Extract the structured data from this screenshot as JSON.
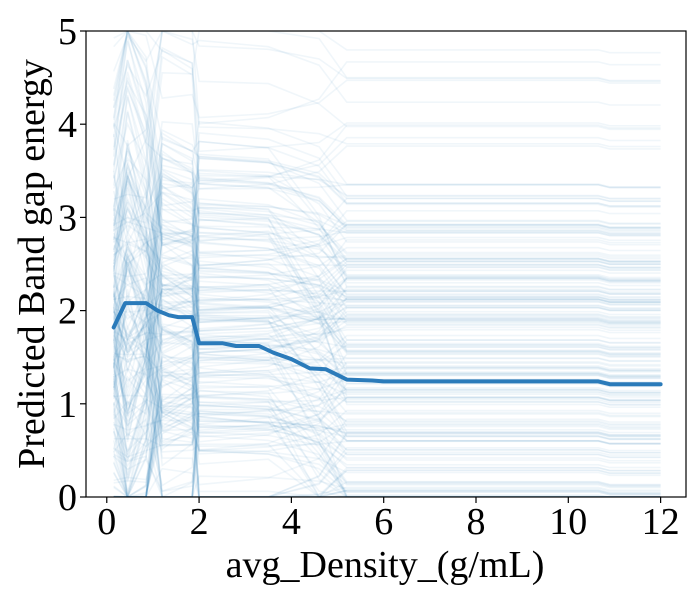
{
  "chart_data": {
    "type": "line",
    "title": "",
    "xlabel": "avg_Density_(g/mL)",
    "ylabel": "Predicted Band gap energy",
    "xlim": [
      -0.45,
      12.55
    ],
    "ylim": [
      0,
      5
    ],
    "xticks": [
      0,
      2,
      4,
      6,
      8,
      10,
      12
    ],
    "yticks": [
      0,
      1,
      2,
      3,
      4,
      5
    ],
    "grid": false,
    "legend": "none",
    "colors": {
      "average_line": "#2b7bba",
      "ice_lines": "#2b7bba"
    },
    "series": [
      {
        "kind": "average",
        "x": [
          0.15,
          0.4,
          0.85,
          1.1,
          1.35,
          1.55,
          1.85,
          2.0,
          2.5,
          2.8,
          3.3,
          3.6,
          4.0,
          4.4,
          4.75,
          5.2,
          5.75,
          6.0,
          7.0,
          8.0,
          10.65,
          10.9,
          12.0
        ],
        "y": [
          1.82,
          2.08,
          2.08,
          2.0,
          1.95,
          1.93,
          1.93,
          1.65,
          1.65,
          1.62,
          1.62,
          1.55,
          1.48,
          1.38,
          1.37,
          1.26,
          1.25,
          1.24,
          1.24,
          1.24,
          1.24,
          1.21,
          1.21
        ]
      }
    ],
    "ice_line_count": 220
  }
}
